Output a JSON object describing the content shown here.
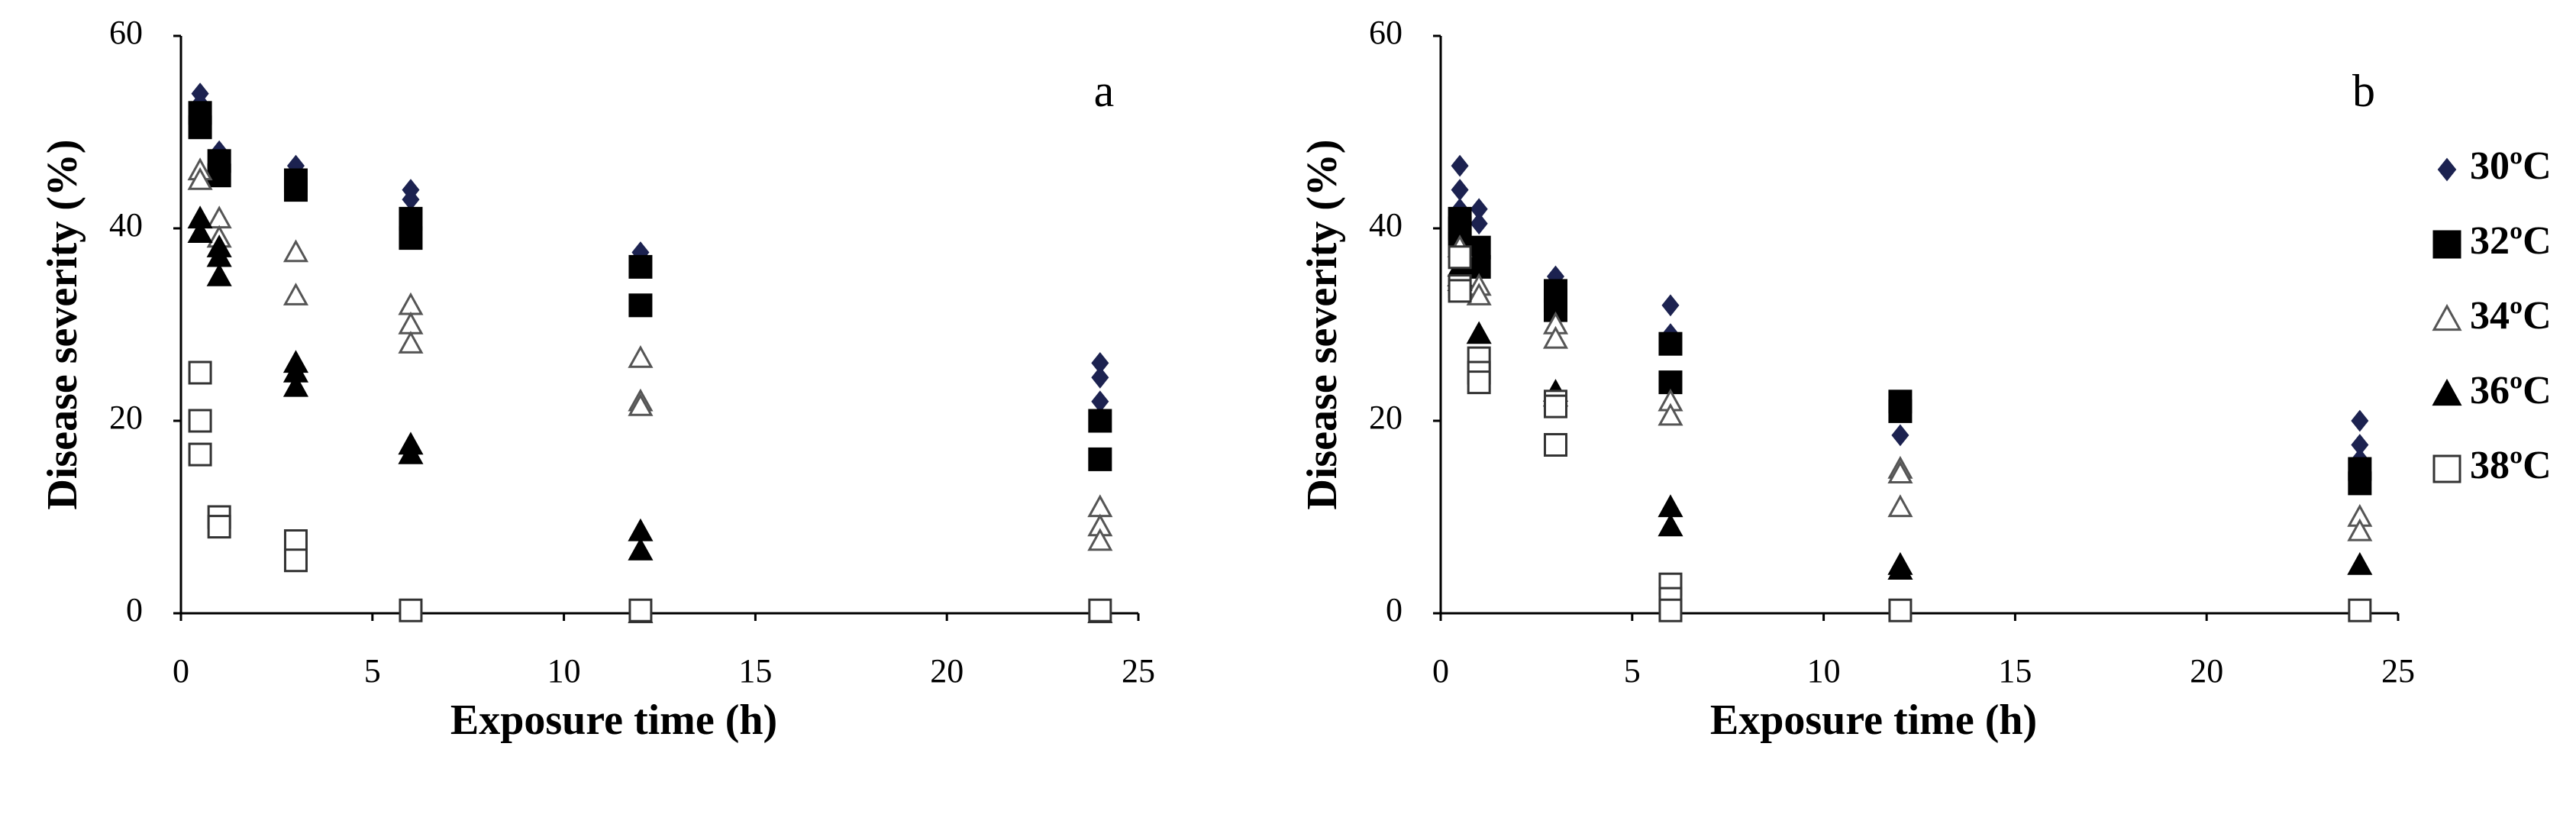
{
  "chart_data": [
    {
      "type": "scatter",
      "panel_label": "a",
      "xlabel": "Exposure time (h)",
      "ylabel": "Disease severity (%)",
      "xlim": [
        0,
        25
      ],
      "xticks": [
        0,
        5,
        10,
        15,
        20,
        25
      ],
      "ylim": [
        0,
        60
      ],
      "yticks": [
        0,
        20,
        40,
        60
      ],
      "series": [
        {
          "marker": "diamond",
          "filled": true,
          "color": "#1c2250",
          "x": [
            0.5,
            0.5,
            1,
            1,
            3,
            3,
            6,
            6,
            12,
            12,
            24,
            24,
            24
          ],
          "values": [
            54,
            53,
            48,
            47,
            46.5,
            46,
            44,
            43,
            37.5,
            37,
            26,
            24.5,
            22
          ]
        },
        {
          "marker": "square",
          "filled": true,
          "color": "#000000",
          "x": [
            0.5,
            0.5,
            1,
            1,
            3,
            3,
            6,
            6,
            12,
            12,
            24,
            24
          ],
          "values": [
            52,
            50.5,
            47,
            45.5,
            45,
            44,
            41,
            39,
            36,
            32,
            20,
            16
          ]
        },
        {
          "marker": "triangle",
          "filled": false,
          "color": "#555555",
          "x": [
            0.5,
            0.5,
            1,
            1,
            3,
            3,
            6,
            6,
            6,
            12,
            12,
            12,
            24,
            24,
            24
          ],
          "values": [
            46,
            45,
            41,
            39,
            37.5,
            33,
            32,
            30,
            28,
            26.5,
            22,
            21.5,
            11,
            9,
            7.5
          ]
        },
        {
          "marker": "triangle",
          "filled": true,
          "color": "#000000",
          "x": [
            0.5,
            0.5,
            1,
            1,
            1,
            3,
            3,
            3,
            6,
            6,
            12,
            12,
            12,
            24
          ],
          "values": [
            41,
            39.5,
            38,
            37,
            35,
            26,
            25,
            23.5,
            17.5,
            16.5,
            8.5,
            6.5,
            0,
            0
          ]
        },
        {
          "marker": "square",
          "filled": false,
          "color": "#333333",
          "x": [
            0.5,
            0.5,
            0.5,
            1,
            1,
            3,
            3,
            6,
            12,
            24
          ],
          "values": [
            25,
            20,
            16.5,
            10,
            9,
            7.5,
            5.5,
            0.3,
            0.3,
            0.3
          ]
        }
      ]
    },
    {
      "type": "scatter",
      "panel_label": "b",
      "xlabel": "Exposure time (h)",
      "ylabel": "Disease severity (%)",
      "xlim": [
        0,
        25
      ],
      "xticks": [
        0,
        5,
        10,
        15,
        20,
        25
      ],
      "ylim": [
        0,
        60
      ],
      "yticks": [
        0,
        20,
        40,
        60
      ],
      "legend": "outside-right",
      "series": [
        {
          "name": "30ºC",
          "marker": "diamond",
          "filled": true,
          "color": "#1c2250",
          "x": [
            0.5,
            0.5,
            0.5,
            1,
            1,
            3,
            3,
            6,
            6,
            12,
            12,
            24,
            24,
            24
          ],
          "values": [
            46.5,
            44,
            42,
            42,
            40.5,
            35,
            34,
            32,
            29,
            22,
            18.5,
            20,
            17.5,
            16
          ]
        },
        {
          "name": "32ºC",
          "marker": "square",
          "filled": true,
          "color": "#000000",
          "x": [
            0.5,
            0.5,
            0.5,
            1,
            1,
            3,
            3,
            3,
            6,
            6,
            12,
            12,
            24,
            24
          ],
          "values": [
            41,
            40,
            38.5,
            38,
            36,
            33.5,
            32.5,
            31.5,
            28,
            24,
            22,
            21,
            15,
            13.5
          ]
        },
        {
          "name": "34ºC",
          "marker": "triangle",
          "filled": false,
          "color": "#555555",
          "x": [
            0.5,
            0.5,
            1,
            1,
            3,
            3,
            6,
            6,
            12,
            12,
            12,
            24,
            24
          ],
          "values": [
            38,
            35,
            34,
            33,
            30,
            28.5,
            22,
            20.5,
            15,
            14.5,
            11,
            10,
            8.5
          ]
        },
        {
          "name": "36ºC",
          "marker": "triangle",
          "filled": true,
          "color": "#000000",
          "x": [
            0.5,
            0.5,
            0.5,
            1,
            3,
            3,
            6,
            6,
            12,
            12,
            24
          ],
          "values": [
            36,
            35,
            34.5,
            29,
            23,
            22.5,
            11,
            9,
            5,
            4.5,
            5
          ]
        },
        {
          "name": "38ºC",
          "marker": "square",
          "filled": false,
          "color": "#333333",
          "x": [
            0.5,
            0.5,
            0.5,
            1,
            1,
            1,
            3,
            3,
            3,
            6,
            6,
            6,
            12,
            24
          ],
          "values": [
            37,
            34,
            33.5,
            26.5,
            25,
            24,
            22,
            21.5,
            17.5,
            3,
            1.5,
            0.3,
            0.3,
            0.3
          ]
        }
      ]
    }
  ]
}
